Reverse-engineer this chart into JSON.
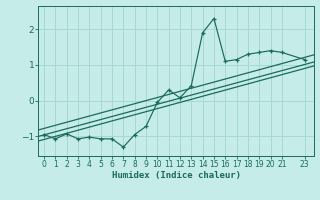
{
  "xlabel": "Humidex (Indice chaleur)",
  "bg_color": "#c5ece8",
  "grid_color": "#a8d8d4",
  "line_color": "#1a6b5a",
  "x_data": [
    0,
    1,
    2,
    3,
    4,
    5,
    6,
    7,
    8,
    9,
    10,
    11,
    12,
    13,
    14,
    15,
    16,
    17,
    18,
    19,
    20,
    21,
    23
  ],
  "y_data": [
    -0.95,
    -1.07,
    -0.93,
    -1.07,
    -1.02,
    -1.07,
    -1.07,
    -1.3,
    -0.95,
    -0.72,
    -0.05,
    0.3,
    0.08,
    0.42,
    1.9,
    2.3,
    1.1,
    1.15,
    1.3,
    1.35,
    1.4,
    1.35,
    1.15
  ],
  "xlim": [
    -0.5,
    23.8
  ],
  "ylim": [
    -1.55,
    2.65
  ],
  "yticks": [
    -1,
    0,
    1,
    2
  ],
  "xtick_positions": [
    0,
    1,
    2,
    3,
    4,
    5,
    6,
    7,
    8,
    9,
    10,
    11,
    12,
    13,
    14,
    15,
    16,
    17,
    18,
    19,
    20,
    21,
    23
  ],
  "xtick_labels": [
    "0",
    "1",
    "2",
    "3",
    "4",
    "5",
    "6",
    "7",
    "8",
    "9",
    "10",
    "11",
    "12",
    "13",
    "14",
    "15",
    "16",
    "17",
    "18",
    "19",
    "20",
    "21",
    "23"
  ],
  "line1_x": [
    -0.5,
    23.8
  ],
  "line1_y": [
    -1.13,
    0.97
  ],
  "line2_x": [
    -0.5,
    23.8
  ],
  "line2_y": [
    -1.0,
    1.08
  ],
  "line3_x": [
    -0.5,
    23.8
  ],
  "line3_y": [
    -0.82,
    1.28
  ]
}
